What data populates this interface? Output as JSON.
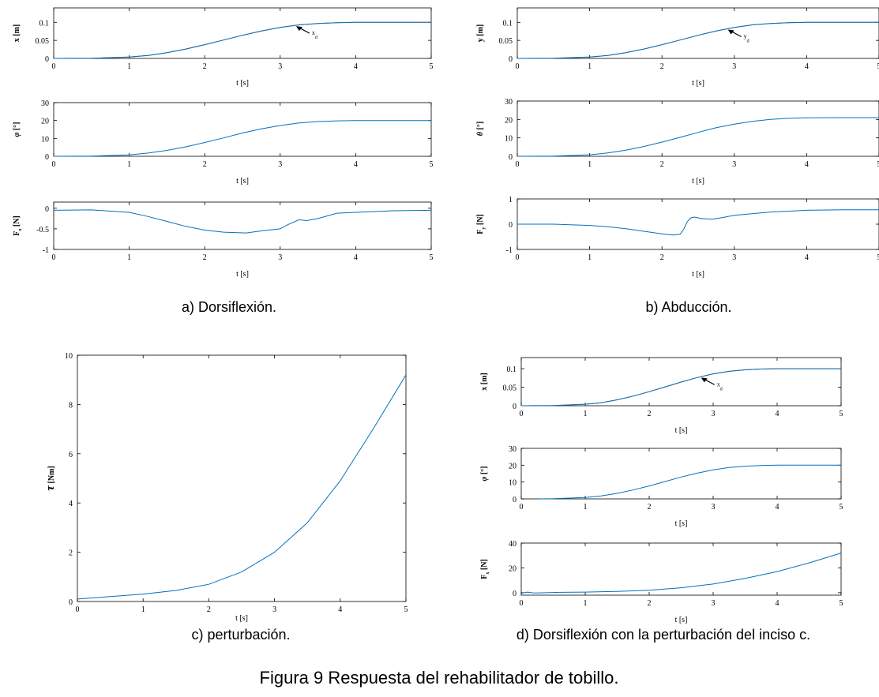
{
  "figure_caption": "Figura 9 Respuesta del rehabilitador de tobillo.",
  "panel_captions": {
    "a": "a) Dorsiflexión.",
    "b": "b) Abducción.",
    "c": "c) perturbación.",
    "d": "d) Dorsiflexión con la perturbación del inciso c."
  },
  "colors": {
    "blue": "#0072bd",
    "orange": "#d95319",
    "axis": "#000000"
  },
  "chart_data": [
    {
      "id": "a1",
      "type": "line",
      "xlabel": "t [s]",
      "ylabel": "x [m]",
      "xlim": [
        0,
        5
      ],
      "ylim": [
        0,
        0.14
      ],
      "xticks": [
        "0",
        "1",
        "2",
        "3",
        "4",
        "5"
      ],
      "yticks": [
        "0",
        "0.05",
        "0.1"
      ],
      "annotation": "x_d",
      "series": [
        {
          "color": "#d95319",
          "x": [
            0,
            0.5,
            1,
            1.25,
            1.5,
            1.75,
            2,
            2.25,
            2.5,
            2.75,
            3,
            3.25,
            3.5,
            3.75,
            4,
            4.5,
            5
          ],
          "y": [
            0,
            0.0005,
            0.004,
            0.008,
            0.016,
            0.026,
            0.038,
            0.051,
            0.064,
            0.076,
            0.086,
            0.093,
            0.097,
            0.099,
            0.1,
            0.1,
            0.1
          ]
        },
        {
          "color": "#0072bd",
          "x": [
            0,
            0.5,
            1,
            1.25,
            1.5,
            1.75,
            2,
            2.25,
            2.5,
            2.75,
            3,
            3.25,
            3.5,
            3.75,
            4,
            4.5,
            5
          ],
          "y": [
            0,
            0.0005,
            0.004,
            0.008,
            0.016,
            0.026,
            0.038,
            0.051,
            0.064,
            0.076,
            0.086,
            0.093,
            0.097,
            0.099,
            0.1,
            0.1,
            0.1
          ]
        }
      ]
    },
    {
      "id": "a2",
      "type": "line",
      "xlabel": "t [s]",
      "ylabel": "φ [°]",
      "xlim": [
        0,
        5
      ],
      "ylim": [
        0,
        30
      ],
      "xticks": [
        "0",
        "1",
        "2",
        "3",
        "4",
        "5"
      ],
      "yticks": [
        "0",
        "10",
        "20",
        "30"
      ],
      "series": [
        {
          "color": "#0072bd",
          "x": [
            0,
            0.5,
            1,
            1.25,
            1.5,
            1.75,
            2,
            2.25,
            2.5,
            2.75,
            3,
            3.25,
            3.5,
            3.75,
            4,
            4.5,
            5
          ],
          "y": [
            0,
            0.1,
            0.8,
            1.8,
            3.3,
            5.3,
            7.7,
            10.3,
            13,
            15.3,
            17.2,
            18.6,
            19.4,
            19.8,
            20,
            20,
            20
          ]
        }
      ]
    },
    {
      "id": "a3",
      "type": "line",
      "xlabel": "t [s]",
      "ylabel": "F_x [N]",
      "xlim": [
        0,
        5
      ],
      "ylim": [
        -1,
        0.15
      ],
      "xticks": [
        "0",
        "1",
        "2",
        "3",
        "4",
        "5"
      ],
      "yticks": [
        "-1",
        "-0.5",
        "0"
      ],
      "series": [
        {
          "color": "#0072bd",
          "x": [
            0,
            0.5,
            1,
            1.25,
            1.5,
            1.75,
            2,
            2.25,
            2.4,
            2.55,
            2.75,
            3,
            3.1,
            3.25,
            3.35,
            3.5,
            3.75,
            4,
            4.5,
            5
          ],
          "y": [
            -0.05,
            -0.04,
            -0.1,
            -0.2,
            -0.32,
            -0.44,
            -0.53,
            -0.58,
            -0.59,
            -0.6,
            -0.55,
            -0.5,
            -0.4,
            -0.28,
            -0.3,
            -0.25,
            -0.12,
            -0.1,
            -0.06,
            -0.05
          ]
        }
      ]
    },
    {
      "id": "b1",
      "type": "line",
      "xlabel": "t [s]",
      "ylabel": "y [m]",
      "xlim": [
        0,
        5
      ],
      "ylim": [
        0,
        0.14
      ],
      "xticks": [
        "0",
        "1",
        "2",
        "3",
        "4",
        "5"
      ],
      "yticks": [
        "0",
        "0.05",
        "0.1"
      ],
      "annotation": "y_d",
      "series": [
        {
          "color": "#d95319",
          "x": [
            0,
            0.5,
            1,
            1.25,
            1.5,
            1.75,
            2,
            2.25,
            2.5,
            2.75,
            3,
            3.25,
            3.5,
            3.75,
            4,
            4.5,
            5
          ],
          "y": [
            0,
            0.0005,
            0.004,
            0.008,
            0.016,
            0.026,
            0.038,
            0.051,
            0.064,
            0.076,
            0.086,
            0.093,
            0.097,
            0.099,
            0.1,
            0.1,
            0.1
          ]
        },
        {
          "color": "#0072bd",
          "x": [
            0,
            0.5,
            1,
            1.25,
            1.5,
            1.75,
            2,
            2.25,
            2.5,
            2.75,
            3,
            3.25,
            3.5,
            3.75,
            4,
            4.5,
            5
          ],
          "y": [
            0,
            0.0005,
            0.004,
            0.008,
            0.016,
            0.026,
            0.038,
            0.051,
            0.064,
            0.076,
            0.086,
            0.093,
            0.097,
            0.099,
            0.1,
            0.1,
            0.1
          ]
        }
      ]
    },
    {
      "id": "b2",
      "type": "line",
      "xlabel": "t [s]",
      "ylabel": "θ [°]",
      "xlim": [
        0,
        5
      ],
      "ylim": [
        0,
        30
      ],
      "xticks": [
        "0",
        "1",
        "2",
        "3",
        "4",
        "5"
      ],
      "yticks": [
        "0",
        "10",
        "20",
        "30"
      ],
      "series": [
        {
          "color": "#0072bd",
          "x": [
            0,
            0.5,
            1,
            1.25,
            1.5,
            1.75,
            2,
            2.25,
            2.5,
            2.75,
            3,
            3.25,
            3.5,
            3.75,
            4,
            4.5,
            5
          ],
          "y": [
            0,
            0.1,
            0.8,
            1.8,
            3.3,
            5.3,
            7.7,
            10.3,
            13,
            15.5,
            17.5,
            19,
            20,
            20.6,
            20.9,
            21,
            21
          ]
        }
      ]
    },
    {
      "id": "b3",
      "type": "line",
      "xlabel": "t [s]",
      "ylabel": "F_y [N]",
      "xlim": [
        0,
        5
      ],
      "ylim": [
        -1,
        1
      ],
      "xticks": [
        "0",
        "1",
        "2",
        "3",
        "4",
        "5"
      ],
      "yticks": [
        "-1",
        "0",
        "1"
      ],
      "series": [
        {
          "color": "#0072bd",
          "x": [
            0,
            0.5,
            1,
            1.25,
            1.5,
            1.75,
            2,
            2.15,
            2.25,
            2.3,
            2.35,
            2.4,
            2.45,
            2.55,
            2.7,
            2.85,
            3,
            3.5,
            4,
            4.5,
            5
          ],
          "y": [
            0,
            0,
            -0.05,
            -0.1,
            -0.18,
            -0.28,
            -0.38,
            -0.43,
            -0.4,
            -0.2,
            0.1,
            0.25,
            0.28,
            0.22,
            0.2,
            0.27,
            0.35,
            0.48,
            0.55,
            0.57,
            0.57
          ]
        }
      ]
    },
    {
      "id": "c",
      "type": "line",
      "xlabel": "t [s]",
      "ylabel": "τ [Nm]",
      "xlim": [
        0,
        5
      ],
      "ylim": [
        0,
        10
      ],
      "xticks": [
        "0",
        "1",
        "2",
        "3",
        "4",
        "5"
      ],
      "yticks": [
        "0",
        "2",
        "4",
        "6",
        "8",
        "10"
      ],
      "series": [
        {
          "color": "#0072bd",
          "x": [
            0,
            0.5,
            1,
            1.5,
            2,
            2.5,
            3,
            3.5,
            4,
            4.5,
            5
          ],
          "y": [
            0.1,
            0.2,
            0.3,
            0.45,
            0.7,
            1.2,
            2,
            3.2,
            4.9,
            7.0,
            9.2
          ]
        }
      ]
    },
    {
      "id": "d1",
      "type": "line",
      "xlabel": "t [s]",
      "ylabel": "x [m]",
      "xlim": [
        0,
        5
      ],
      "ylim": [
        0,
        0.13
      ],
      "xticks": [
        "0",
        "1",
        "2",
        "3",
        "4",
        "5"
      ],
      "yticks": [
        "0",
        "0.05",
        "0.1"
      ],
      "annotation": "x_d",
      "series": [
        {
          "color": "#d95319",
          "x": [
            0,
            0.5,
            1,
            1.25,
            1.5,
            1.75,
            2,
            2.25,
            2.5,
            2.75,
            3,
            3.25,
            3.5,
            3.75,
            4,
            4.5,
            5
          ],
          "y": [
            0,
            0.0005,
            0.004,
            0.008,
            0.016,
            0.026,
            0.038,
            0.051,
            0.064,
            0.076,
            0.086,
            0.093,
            0.097,
            0.099,
            0.1,
            0.1,
            0.1
          ]
        },
        {
          "color": "#0072bd",
          "x": [
            0,
            0.5,
            1,
            1.25,
            1.5,
            1.75,
            2,
            2.25,
            2.5,
            2.75,
            3,
            3.25,
            3.5,
            3.75,
            4,
            4.5,
            5
          ],
          "y": [
            0,
            0.0005,
            0.004,
            0.008,
            0.016,
            0.026,
            0.038,
            0.051,
            0.064,
            0.076,
            0.086,
            0.093,
            0.097,
            0.099,
            0.1,
            0.1,
            0.1
          ]
        }
      ]
    },
    {
      "id": "d2",
      "type": "line",
      "xlabel": "t [s]",
      "ylabel": "φ [°]",
      "xlim": [
        0,
        5
      ],
      "ylim": [
        0,
        30
      ],
      "xticks": [
        "0",
        "1",
        "2",
        "3",
        "4",
        "5"
      ],
      "yticks": [
        "0",
        "10",
        "20",
        "30"
      ],
      "series": [
        {
          "color": "#0072bd",
          "x": [
            0.3,
            0.5,
            1,
            1.25,
            1.5,
            1.75,
            2,
            2.25,
            2.5,
            2.75,
            3,
            3.25,
            3.5,
            3.75,
            4,
            4.5,
            5
          ],
          "y": [
            0,
            0.1,
            0.8,
            1.8,
            3.3,
            5.3,
            7.7,
            10.3,
            13,
            15.3,
            17.2,
            18.6,
            19.4,
            19.8,
            20,
            20,
            20
          ]
        }
      ]
    },
    {
      "id": "d3",
      "type": "line",
      "xlabel": "t [s]",
      "ylabel": "F_x [N]",
      "xlim": [
        0,
        5
      ],
      "ylim": [
        -2,
        40
      ],
      "xticks": [
        "0",
        "1",
        "2",
        "3",
        "4",
        "5"
      ],
      "yticks": [
        "0",
        "20",
        "40"
      ],
      "series": [
        {
          "color": "#0072bd",
          "x": [
            0,
            0.1,
            0.2,
            0.4,
            0.6,
            1,
            1.5,
            2,
            2.5,
            3,
            3.5,
            4,
            4.5,
            5
          ],
          "y": [
            -0.5,
            0.5,
            -0.3,
            0,
            0.3,
            0.5,
            1,
            2,
            4,
            7,
            11.5,
            17,
            24,
            32
          ]
        }
      ]
    }
  ]
}
